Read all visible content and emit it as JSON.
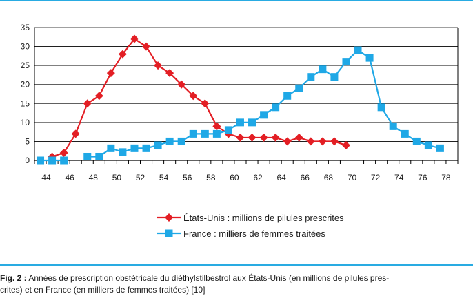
{
  "caption": {
    "label": "Fig. 2 :",
    "line1": "Années de prescription obstétricale du diéthylstilbestrol aux États-Unis (en millions de pilules pres-",
    "line2": "crites) et en France (en milliers de femmes traitées) [10]"
  },
  "colors": {
    "accent": "#29abe2",
    "us": "#e31e24",
    "france": "#1fa8e6"
  },
  "chart_data": {
    "type": "line",
    "title": "",
    "xlabel": "",
    "ylabel": "",
    "xlim": [
      43,
      79
    ],
    "ylim": [
      0,
      35
    ],
    "grid": true,
    "legend": "bottom-center",
    "x_ticks": [
      "44",
      "46",
      "48",
      "50",
      "52",
      "54",
      "56",
      "58",
      "60",
      "62",
      "64",
      "66",
      "68",
      "70",
      "72",
      "74",
      "76",
      "78"
    ],
    "y_ticks": [
      "0",
      "5",
      "10",
      "15",
      "20",
      "25",
      "30",
      "35"
    ],
    "series": [
      {
        "name": "États-Unis : millions de pilules prescrites",
        "marker": "diamond",
        "points": [
          [
            44.5,
            1
          ],
          [
            45.5,
            2
          ],
          [
            46.5,
            7
          ],
          [
            47.5,
            15
          ],
          [
            48.5,
            17
          ],
          [
            49.5,
            23
          ],
          [
            50.5,
            28
          ],
          [
            51.5,
            32
          ],
          [
            52.5,
            30
          ],
          [
            53.5,
            25
          ],
          [
            54.5,
            23
          ],
          [
            55.5,
            20
          ],
          [
            56.5,
            17
          ],
          [
            57.5,
            15
          ],
          [
            58.5,
            9
          ],
          [
            59.5,
            7
          ],
          [
            60.5,
            6
          ],
          [
            61.5,
            6
          ],
          [
            62.5,
            6
          ],
          [
            63.5,
            6
          ],
          [
            64.5,
            5
          ],
          [
            65.5,
            6
          ],
          [
            66.5,
            5
          ],
          [
            67.5,
            5
          ],
          [
            68.5,
            5
          ],
          [
            69.5,
            4
          ]
        ]
      },
      {
        "name": "France : milliers de femmes traitées",
        "marker": "square",
        "segments": [
          [
            [
              43.5,
              0
            ],
            [
              44.5,
              0
            ],
            [
              45.5,
              0
            ]
          ],
          [
            [
              47.5,
              1
            ],
            [
              48.5,
              1
            ],
            [
              49.5,
              3.2
            ],
            [
              50.5,
              2.2
            ],
            [
              51.5,
              3.2
            ],
            [
              52.5,
              3.2
            ],
            [
              53.5,
              4
            ],
            [
              54.5,
              5
            ],
            [
              55.5,
              5
            ],
            [
              56.5,
              7
            ],
            [
              57.5,
              7
            ],
            [
              58.5,
              7
            ],
            [
              59.5,
              8
            ],
            [
              60.5,
              10
            ],
            [
              61.5,
              10
            ],
            [
              62.5,
              12
            ],
            [
              63.5,
              14
            ],
            [
              64.5,
              17
            ],
            [
              65.5,
              19
            ],
            [
              66.5,
              22
            ],
            [
              67.5,
              24
            ],
            [
              68.5,
              22
            ],
            [
              69.5,
              26
            ],
            [
              70.5,
              29
            ],
            [
              71.5,
              27
            ],
            [
              72.5,
              14
            ],
            [
              73.5,
              9
            ],
            [
              74.5,
              7
            ],
            [
              75.5,
              5
            ],
            [
              76.5,
              4
            ],
            [
              77.5,
              3.2
            ]
          ]
        ]
      }
    ]
  }
}
